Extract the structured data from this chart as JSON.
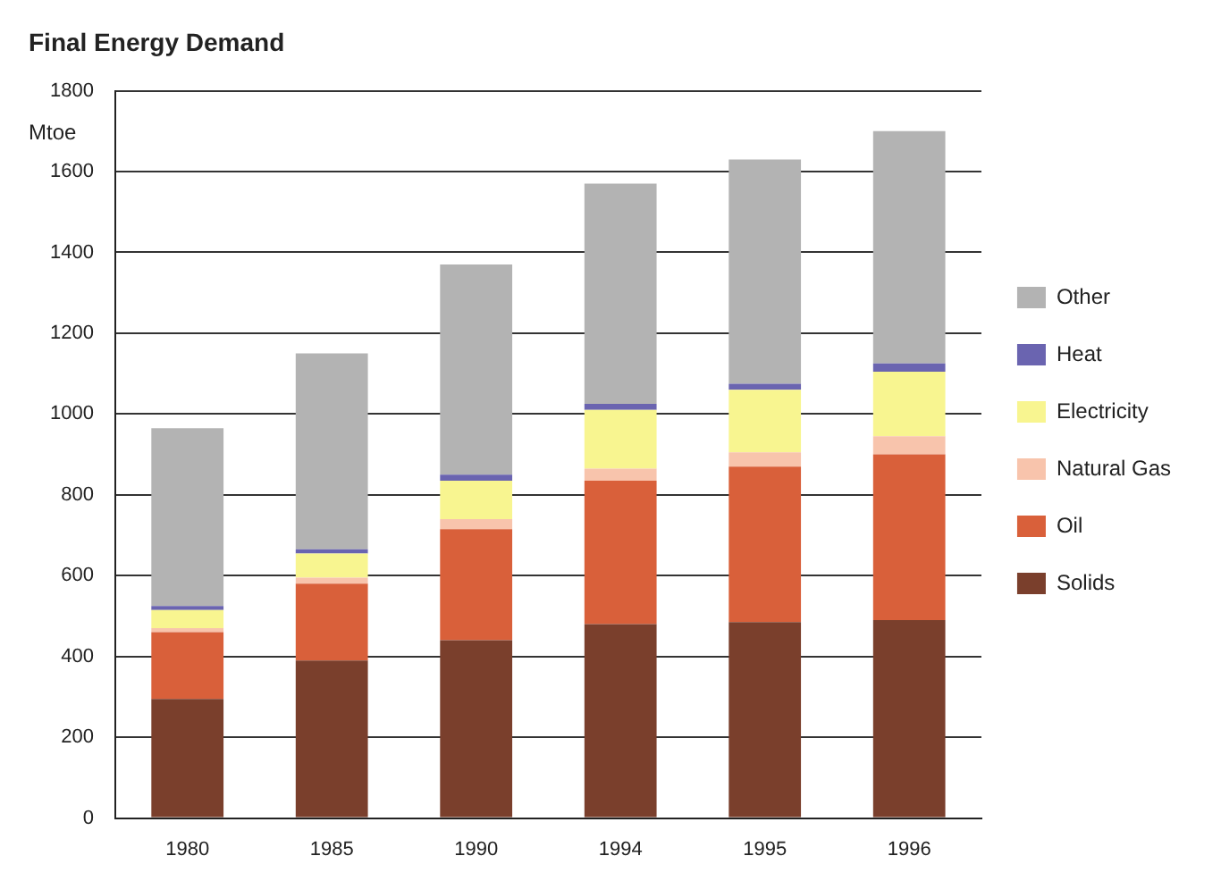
{
  "chart_data": {
    "type": "bar",
    "title": "Final Energy Demand",
    "ylabel": "Mtoe",
    "categories": [
      "1980",
      "1985",
      "1990",
      "1994",
      "1995",
      "1996"
    ],
    "stacked": true,
    "series": [
      {
        "name": "Solids",
        "color": "#7a3f2c",
        "values": [
          295,
          390,
          440,
          480,
          485,
          490
        ]
      },
      {
        "name": "Oil",
        "color": "#d9603a",
        "values": [
          165,
          190,
          275,
          355,
          385,
          410
        ]
      },
      {
        "name": "Natural Gas",
        "color": "#f8c4ac",
        "values": [
          10,
          15,
          25,
          30,
          35,
          45
        ]
      },
      {
        "name": "Electricity",
        "color": "#f8f590",
        "values": [
          45,
          60,
          95,
          145,
          155,
          160
        ]
      },
      {
        "name": "Heat",
        "color": "#6a64b0",
        "values": [
          10,
          10,
          15,
          15,
          15,
          20
        ]
      },
      {
        "name": "Other",
        "color": "#b3b3b3",
        "values": [
          440,
          485,
          520,
          545,
          555,
          575
        ]
      }
    ],
    "ylim": [
      0,
      1800
    ],
    "yticks": [
      0,
      200,
      400,
      600,
      800,
      1000,
      1200,
      1400,
      1600,
      1800
    ],
    "grid": "y",
    "legend": "right"
  }
}
